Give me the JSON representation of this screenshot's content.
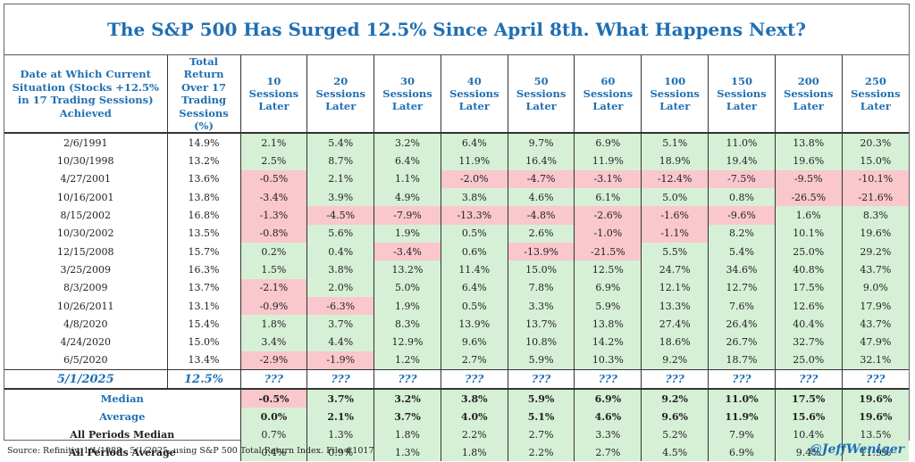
{
  "title": "The S&P 500 Has Surged 12.5% Since April 8th. What Happens Next?",
  "columns": [
    "Date at Which Current Situation (Stocks +12.5% in 17 Trading Sessions) Achieved",
    "Total Return Over 17 Trading Sessions (%)",
    "10 Sessions Later",
    "20 Sessions Later",
    "30 Sessions Later",
    "40 Sessions Later",
    "50 Sessions Later",
    "60 Sessions Later",
    "100 Sessions Later",
    "150 Sessions Later",
    "200 Sessions Later",
    "250 Sessions Later"
  ],
  "rows": [
    [
      "2/6/1991",
      "14.9%",
      "2.1%",
      "5.4%",
      "3.2%",
      "6.4%",
      "9.7%",
      "6.9%",
      "5.1%",
      "11.0%",
      "13.8%",
      "20.3%"
    ],
    [
      "10/30/1998",
      "13.2%",
      "2.5%",
      "8.7%",
      "6.4%",
      "11.9%",
      "16.4%",
      "11.9%",
      "18.9%",
      "19.4%",
      "19.6%",
      "15.0%"
    ],
    [
      "4/27/2001",
      "13.6%",
      "-0.5%",
      "2.1%",
      "1.1%",
      "-2.0%",
      "-4.7%",
      "-3.1%",
      "-12.4%",
      "-7.5%",
      "-9.5%",
      "-10.1%"
    ],
    [
      "10/16/2001",
      "13.8%",
      "-3.4%",
      "3.9%",
      "4.9%",
      "3.8%",
      "4.6%",
      "6.1%",
      "5.0%",
      "0.8%",
      "-26.5%",
      "-21.6%"
    ],
    [
      "8/15/2002",
      "16.8%",
      "-1.3%",
      "-4.5%",
      "-7.9%",
      "-13.3%",
      "-4.8%",
      "-2.6%",
      "-1.6%",
      "-9.6%",
      "1.6%",
      "8.3%"
    ],
    [
      "10/30/2002",
      "13.5%",
      "-0.8%",
      "5.6%",
      "1.9%",
      "0.5%",
      "2.6%",
      "-1.0%",
      "-1.1%",
      "8.2%",
      "10.1%",
      "19.6%"
    ],
    [
      "12/15/2008",
      "15.7%",
      "0.2%",
      "0.4%",
      "-3.4%",
      "0.6%",
      "-13.9%",
      "-21.5%",
      "5.5%",
      "5.4%",
      "25.0%",
      "29.2%"
    ],
    [
      "3/25/2009",
      "16.3%",
      "1.5%",
      "3.8%",
      "13.2%",
      "11.4%",
      "15.0%",
      "12.5%",
      "24.7%",
      "34.6%",
      "40.8%",
      "43.7%"
    ],
    [
      "8/3/2009",
      "13.7%",
      "-2.1%",
      "2.0%",
      "5.0%",
      "6.4%",
      "7.8%",
      "6.9%",
      "12.1%",
      "12.7%",
      "17.5%",
      "9.0%"
    ],
    [
      "10/26/2011",
      "13.1%",
      "-0.9%",
      "-6.3%",
      "1.9%",
      "0.5%",
      "3.3%",
      "5.9%",
      "13.3%",
      "7.6%",
      "12.6%",
      "17.9%"
    ],
    [
      "4/8/2020",
      "15.4%",
      "1.8%",
      "3.7%",
      "8.3%",
      "13.9%",
      "13.7%",
      "13.8%",
      "27.4%",
      "26.4%",
      "40.4%",
      "43.7%"
    ],
    [
      "4/24/2020",
      "15.0%",
      "3.4%",
      "4.4%",
      "12.9%",
      "9.6%",
      "10.8%",
      "14.2%",
      "18.6%",
      "26.7%",
      "32.7%",
      "47.9%"
    ],
    [
      "6/5/2020",
      "13.4%",
      "-2.9%",
      "-1.9%",
      "1.2%",
      "2.7%",
      "5.9%",
      "10.3%",
      "9.2%",
      "18.7%",
      "25.0%",
      "32.1%"
    ]
  ],
  "current": [
    "5/1/2025",
    "12.5%",
    "???",
    "???",
    "???",
    "???",
    "???",
    "???",
    "???",
    "???",
    "???",
    "???"
  ],
  "summary": [
    [
      "Median",
      "-0.5%",
      "3.7%",
      "3.2%",
      "3.8%",
      "5.9%",
      "6.9%",
      "9.2%",
      "11.0%",
      "17.5%",
      "19.6%"
    ],
    [
      "Average",
      "0.0%",
      "2.1%",
      "3.7%",
      "4.0%",
      "5.1%",
      "4.6%",
      "9.6%",
      "11.9%",
      "15.6%",
      "19.6%"
    ],
    [
      "All Periods Median",
      "0.7%",
      "1.3%",
      "1.8%",
      "2.2%",
      "2.7%",
      "3.3%",
      "5.2%",
      "7.9%",
      "10.4%",
      "13.5%"
    ],
    [
      "All Periods Average",
      "0.4%",
      "0.9%",
      "1.3%",
      "1.8%",
      "2.2%",
      "2.7%",
      "4.5%",
      "6.9%",
      "9.4%",
      "11.9%"
    ]
  ],
  "colors": {
    "positive": "#d6f0d6",
    "negative": "#f9c7cc",
    "accent": "#1f6fb2"
  },
  "source": "Source: Refinitiv, 1/1/1988 - 5/1/2025, using S&P 500 Total Return Index. File #1017",
  "handle": "@JeffWeniger"
}
